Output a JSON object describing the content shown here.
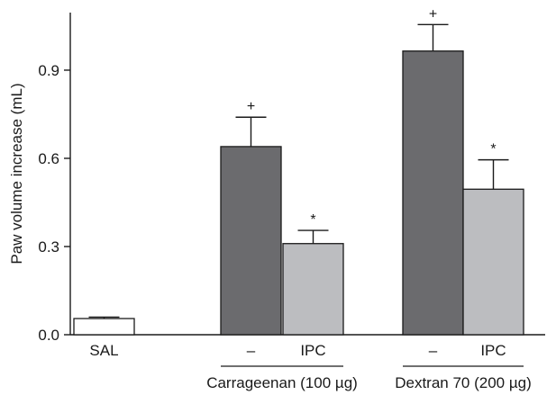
{
  "chart_data": {
    "type": "bar",
    "title": "",
    "xlabel": "",
    "ylabel": "Paw volume increase (mL)",
    "ylim": [
      0,
      1.1
    ],
    "yticks": [
      0.0,
      0.3,
      0.6,
      0.9
    ],
    "ytick_labels": [
      "0.0",
      "0.3",
      "0.6",
      "0.9"
    ],
    "grid": false,
    "bars": [
      {
        "label": "SAL",
        "value": 0.055,
        "error": 0.005,
        "annotation": "",
        "fill": "#ffffff"
      },
      {
        "label": "–",
        "value": 0.64,
        "error": 0.1,
        "annotation": "+",
        "fill": "#6b6b6e"
      },
      {
        "label": "IPC",
        "value": 0.31,
        "error": 0.045,
        "annotation": "*",
        "fill": "#bcbdc0"
      },
      {
        "label": "–",
        "value": 0.965,
        "error": 0.09,
        "annotation": "+",
        "fill": "#6b6b6e"
      },
      {
        "label": "IPC",
        "value": 0.495,
        "error": 0.1,
        "annotation": "*",
        "fill": "#bcbdc0"
      }
    ],
    "groups": [
      {
        "label": "Carrageenan (100 µg)",
        "bars": [
          1,
          2
        ]
      },
      {
        "label": "Dextran 70 (200 µg)",
        "bars": [
          3,
          4
        ]
      }
    ]
  }
}
